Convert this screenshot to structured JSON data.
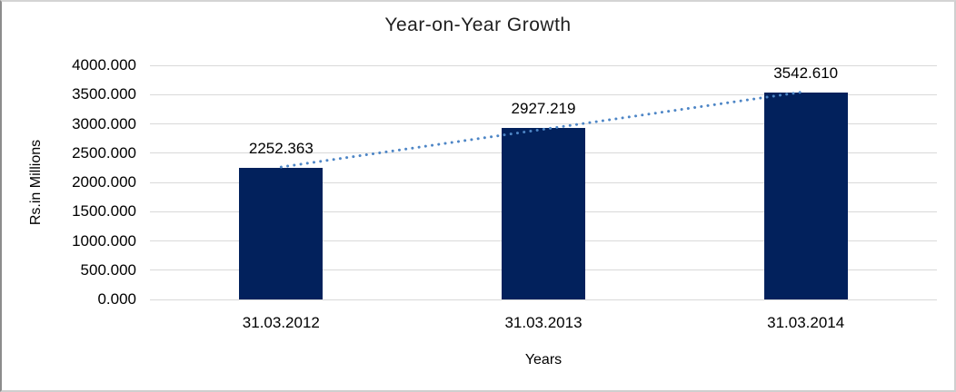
{
  "chart_data": {
    "type": "bar",
    "title": "Year-on-Year Growth",
    "xlabel": "Years",
    "ylabel": "Rs.in Millions",
    "categories": [
      "31.03.2012",
      "31.03.2013",
      "31.03.2014"
    ],
    "values": [
      2252.363,
      2927.219,
      3542.61
    ],
    "data_labels": [
      "2252.363",
      "2927.219",
      "3542.610"
    ],
    "ylim": [
      0,
      4000
    ],
    "ytick_values": [
      0,
      500,
      1000,
      1500,
      2000,
      2500,
      3000,
      3500,
      4000
    ],
    "ytick_labels": [
      "0.000",
      "500.000",
      "1000.000",
      "1500.000",
      "2000.000",
      "2500.000",
      "3000.000",
      "3500.000",
      "4000.000"
    ],
    "grid": true,
    "legend_position": "none",
    "trendline": {
      "type": "linear",
      "style": "dotted"
    },
    "colors": {
      "bar": "#02215C",
      "trendline": "#4E86C6",
      "gridline": "#D9D9D9",
      "text": "#000000"
    }
  }
}
